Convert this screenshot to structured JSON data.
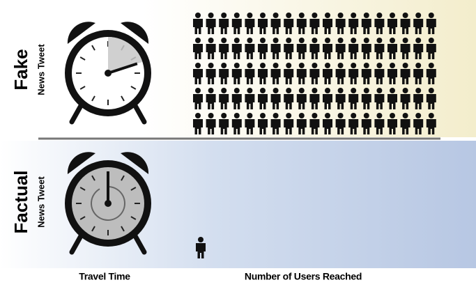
{
  "chart_data": {
    "type": "pictograph",
    "categories": [
      "Fake",
      "Factual"
    ],
    "sublabels": [
      "News Tweet",
      "News Tweet"
    ],
    "series": [
      {
        "name": "Travel Time",
        "values": [
          12,
          55
        ]
      },
      {
        "name": "Number of Users Reached",
        "values": [
          95,
          1
        ]
      }
    ]
  }
}
